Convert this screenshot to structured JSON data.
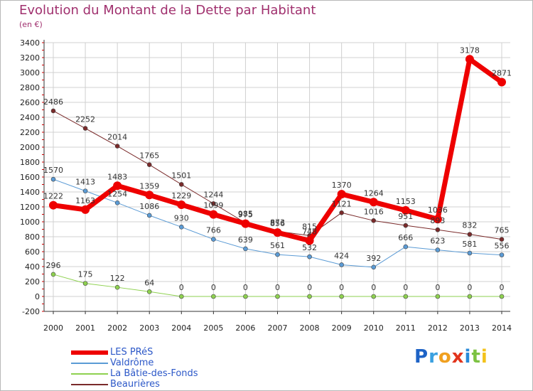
{
  "title": "Evolution du Montant de la Dette par Habitant",
  "subtitle": "(en €)",
  "logo_text": "Proxiti",
  "colors": {
    "title": "#a0306e",
    "les_pres": "#ee0000",
    "valdrome": "#5b9bd5",
    "batie": "#8ed14f",
    "beaurieres": "#7a2a2a",
    "grid": "#d0d0d0",
    "axis": "#333333",
    "axis_accent": "#cc0000"
  },
  "chart_data": {
    "type": "line",
    "title": "Evolution du Montant de la Dette par Habitant",
    "subtitle": "(en €)",
    "x": [
      "2000",
      "2001",
      "2002",
      "2003",
      "2004",
      "2005",
      "2006",
      "2007",
      "2008",
      "2009",
      "2010",
      "2011",
      "2012",
      "2013",
      "2014"
    ],
    "ylim": [
      -200,
      3400
    ],
    "yticks": [
      -200,
      0,
      200,
      400,
      600,
      800,
      1000,
      1200,
      1400,
      1600,
      1800,
      2000,
      2200,
      2400,
      2600,
      2800,
      3000,
      3200,
      3400
    ],
    "grid": true,
    "legend_position": "bottom-left",
    "series": [
      {
        "name": "LES PRéS",
        "color": "#ee0000",
        "width": 7,
        "marker": 6,
        "values": [
          1222,
          1163,
          1483,
          1359,
          1229,
          1099,
          975,
          856,
          748,
          1370,
          1264,
          1153,
          1036,
          3178,
          2871
        ]
      },
      {
        "name": "Valdrôme",
        "color": "#5b9bd5",
        "width": 1,
        "marker": 3,
        "values": [
          1570,
          1413,
          1254,
          1086,
          930,
          766,
          639,
          561,
          532,
          424,
          392,
          666,
          623,
          581,
          556
        ]
      },
      {
        "name": "La Bâtie-des-Fonds",
        "color": "#8ed14f",
        "width": 1,
        "marker": 3,
        "values": [
          296,
          175,
          122,
          64,
          0,
          0,
          0,
          0,
          0,
          0,
          0,
          0,
          0,
          0,
          0
        ]
      },
      {
        "name": "Beaurières",
        "color": "#7a2a2a",
        "width": 1,
        "marker": 3,
        "values": [
          2486,
          2252,
          2014,
          1765,
          1501,
          1244,
          985,
          873,
          815,
          1121,
          1016,
          951,
          893,
          832,
          765
        ]
      }
    ]
  }
}
